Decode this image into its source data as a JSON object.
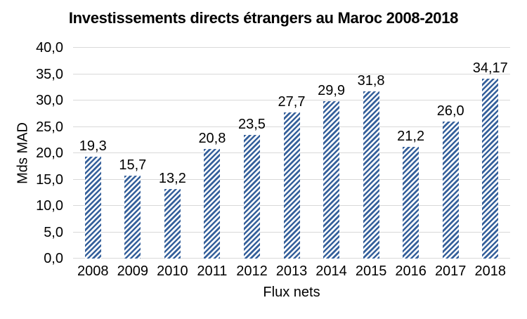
{
  "chart_data": {
    "type": "bar",
    "title": "Investissements directs étrangers au Maroc 2008-2018",
    "xlabel": "Flux nets",
    "ylabel": "Mds MAD",
    "categories": [
      "2008",
      "2009",
      "2010",
      "2011",
      "2012",
      "2013",
      "2014",
      "2015",
      "2016",
      "2017",
      "2018"
    ],
    "values": [
      19.3,
      15.7,
      13.2,
      20.8,
      23.5,
      27.7,
      29.9,
      31.8,
      21.2,
      26.0,
      34.17
    ],
    "value_labels": [
      "19,3",
      "15,7",
      "13,2",
      "20,8",
      "23,5",
      "27,7",
      "29,9",
      "31,8",
      "21,2",
      "26,0",
      "34,17"
    ],
    "ylim": [
      0,
      40
    ],
    "ytick_step": 5,
    "ytick_labels": [
      "0,0",
      "5,0",
      "10,0",
      "15,0",
      "20,0",
      "25,0",
      "30,0",
      "35,0",
      "40,0"
    ],
    "grid": true,
    "legend": "none",
    "bar_fill_style": "diagonal-hatch-up",
    "bar_color": "#35609B",
    "bar_gap_color": "#FFFFFF",
    "gridline_color": "#D9D9D9",
    "text_color": "#000000"
  }
}
